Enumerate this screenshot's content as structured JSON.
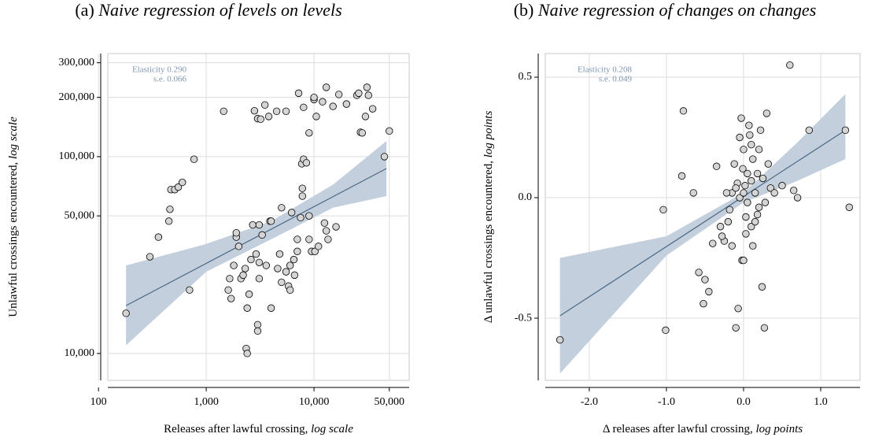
{
  "chart_data": [
    {
      "type": "scatter",
      "panel_label": "(a)",
      "title": "Naive regression of levels on levels",
      "x_label": "Releases after lawful crossing,",
      "x_label_unit": "log scale",
      "y_label": "Unlawful crossings encountered,",
      "y_label_unit": "log scale",
      "annotations": [
        "Elasticity 0.290",
        "s.e. 0.066"
      ],
      "xlog": true,
      "ylog": true,
      "grid": true,
      "xlim": [
        122,
        76400
      ],
      "ylim": [
        7300,
        334000
      ],
      "xticks": [
        100,
        {
          "value": 1000,
          "label": "1,000"
        },
        {
          "value": 10000,
          "label": "10,000"
        },
        {
          "value": 50000,
          "label": "50,000"
        }
      ],
      "yticks": [
        {
          "value": 10000,
          "label": "10,000"
        },
        {
          "value": 50000,
          "label": "50,000"
        },
        {
          "value": 100000,
          "label": "100,000"
        },
        {
          "value": 200000,
          "label": "200,000"
        },
        {
          "value": 300000,
          "label": "300,000"
        }
      ],
      "color": "#d4d4d4",
      "x": [
        180,
        300,
        360,
        450,
        460,
        470,
        510,
        550,
        600,
        700,
        770,
        1450,
        1600,
        1650,
        1700,
        1800,
        1900,
        1900,
        2000,
        2100,
        2200,
        2300,
        2350,
        2400,
        2400,
        2500,
        2600,
        2700,
        2800,
        2900,
        3000,
        3000,
        3000,
        3100,
        3100,
        3100,
        3200,
        3300,
        3500,
        3600,
        3800,
        3900,
        4000,
        4000,
        4500,
        4600,
        4800,
        5000,
        5000,
        5500,
        5500,
        5800,
        6000,
        6000,
        6200,
        6500,
        6600,
        7000,
        7000,
        7200,
        7500,
        7700,
        7800,
        7800,
        8000,
        8000,
        8500,
        9000,
        9000,
        9000,
        9500,
        10000,
        10000,
        10200,
        10500,
        11000,
        12000,
        12500,
        13000,
        13000,
        13500,
        15000,
        16000,
        17000,
        20000,
        25000,
        26000,
        27000,
        28000,
        30000,
        31000,
        32000,
        35000,
        45000,
        50000
      ],
      "values": [
        16000,
        31000,
        39000,
        47000,
        54000,
        68000,
        68000,
        70000,
        74000,
        21000,
        97000,
        170000,
        21000,
        24000,
        19000,
        28000,
        39000,
        41000,
        35000,
        24000,
        25000,
        27000,
        10600,
        10000,
        17000,
        20000,
        30000,
        45000,
        171000,
        32000,
        156000,
        14000,
        13000,
        24000,
        45000,
        29000,
        155000,
        40000,
        183000,
        28000,
        160000,
        47000,
        47000,
        17000,
        170000,
        27000,
        32000,
        23000,
        55000,
        170000,
        26000,
        22000,
        21000,
        28000,
        52000,
        30000,
        25000,
        38000,
        33000,
        210000,
        49000,
        92000,
        69000,
        63000,
        178000,
        97000,
        93000,
        50000,
        132000,
        38000,
        33000,
        195000,
        200000,
        33000,
        160000,
        35000,
        190000,
        46000,
        225000,
        42000,
        38000,
        180000,
        44000,
        207000,
        185000,
        205000,
        210000,
        133000,
        132000,
        160000,
        225000,
        205000,
        175000,
        100000,
        135000
      ],
      "fit": {
        "color": "#4d6a85",
        "x": [
          180,
          47000
        ],
        "values": [
          17500,
          87000
        ]
      },
      "band": {
        "color": "#c3cfdd",
        "x": [
          180,
          1000,
          4000,
          15000,
          47000
        ],
        "lower": [
          11000,
          26000,
          38000,
          55000,
          63000
        ],
        "upper": [
          28000,
          36000,
          47000,
          72000,
          120000
        ]
      }
    },
    {
      "type": "scatter",
      "panel_label": "(b)",
      "title": "Naive regression of changes on changes",
      "x_label": "Δ releases after lawful crossing,",
      "x_label_unit": "log points",
      "y_label": "Δ unlawful crossings encountered,",
      "y_label_unit": "log points",
      "annotations": [
        "Elasticity 0.208",
        "s.e. 0.049"
      ],
      "xlog": false,
      "ylog": false,
      "grid": true,
      "xlim": [
        -2.57,
        1.51
      ],
      "ylim": [
        -0.758,
        0.598
      ],
      "xticks": [
        {
          "value": -2,
          "label": "-2.0"
        },
        {
          "value": -1,
          "label": "-1.0"
        },
        {
          "value": 0,
          "label": "0.0"
        },
        {
          "value": 1,
          "label": "1.0"
        }
      ],
      "yticks": [
        -0.5,
        {
          "value": 0,
          "label": "0.0"
        },
        0.5
      ],
      "color": "#d4d4d4",
      "x": [
        -2.38,
        -1.04,
        -1.01,
        -0.78,
        -0.8,
        -0.65,
        -0.58,
        -0.5,
        -0.45,
        -0.52,
        -0.35,
        -0.3,
        -0.25,
        -0.28,
        -0.2,
        -0.18,
        -0.15,
        -0.12,
        -0.1,
        -0.07,
        -0.05,
        -0.05,
        -0.03,
        -0.02,
        0.0,
        0.0,
        0.02,
        0.03,
        0.05,
        0.07,
        0.1,
        0.1,
        0.12,
        0.15,
        0.18,
        0.2,
        0.22,
        0.24,
        0.25,
        0.27,
        0.3,
        0.32,
        0.35,
        0.4,
        0.5,
        0.6,
        0.65,
        0.7,
        0.85,
        1.32,
        1.37,
        -0.4,
        -0.08,
        0.05,
        0.12,
        -0.01,
        0.08,
        0.15,
        -0.1,
        0.18,
        0.03,
        -0.15,
        0.0,
        0.28,
        -0.22,
        0.1,
        0.2
      ],
      "values": [
        -0.59,
        -0.05,
        -0.55,
        0.36,
        0.09,
        0.02,
        -0.31,
        -0.34,
        -0.39,
        -0.44,
        0.13,
        -0.12,
        -0.18,
        -0.16,
        -0.1,
        -0.05,
        0.02,
        0.14,
        -0.54,
        -0.46,
        0.0,
        0.25,
        0.33,
        -0.26,
        -0.26,
        0.2,
        0.05,
        -0.08,
        0.1,
        0.3,
        0.22,
        -0.12,
        -0.2,
        0.02,
        -0.07,
        0.2,
        0.28,
        -0.37,
        0.08,
        -0.54,
        0.35,
        0.14,
        0.04,
        0.02,
        0.05,
        0.55,
        0.03,
        0.0,
        0.28,
        0.28,
        -0.04,
        -0.19,
        0.06,
        -0.02,
        0.16,
        0.12,
        0.26,
        -0.1,
        0.04,
        0.1,
        -0.15,
        -0.2,
        0.02,
        -0.02,
        0.02,
        0.07,
        -0.04
      ],
      "fit": {
        "color": "#4d6a85",
        "x": [
          -2.38,
          1.32
        ],
        "values": [
          -0.49,
          0.28
        ]
      },
      "band": {
        "color": "#c3cfdd",
        "x": [
          -2.38,
          -1.0,
          0.0,
          0.7,
          1.32
        ],
        "lower": [
          -0.73,
          -0.24,
          -0.02,
          0.07,
          0.16
        ],
        "upper": [
          -0.25,
          -0.16,
          0.02,
          0.23,
          0.43
        ]
      }
    }
  ]
}
